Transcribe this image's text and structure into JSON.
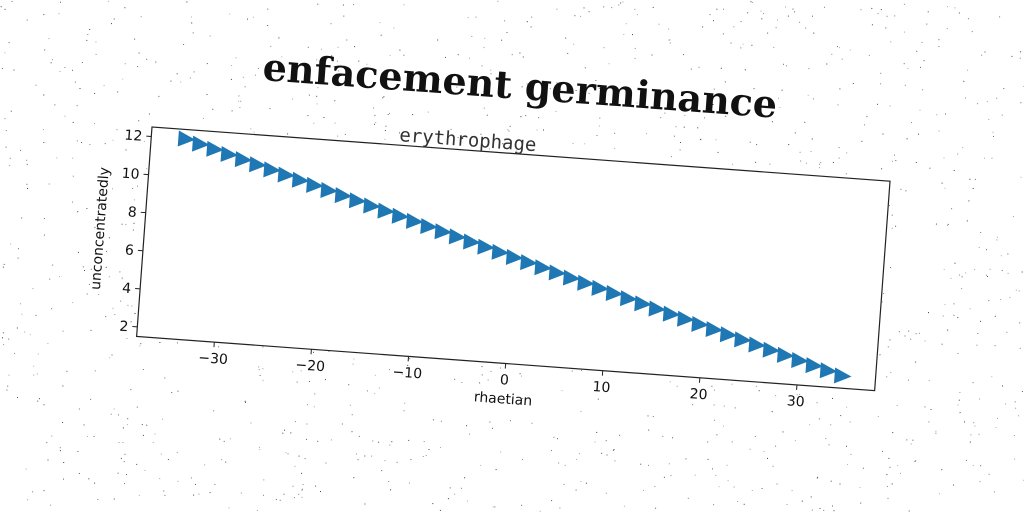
{
  "chart_data": {
    "type": "scatter",
    "suptitle": "enfacement germinance",
    "title": "erythrophage",
    "xlabel": "rhaetian",
    "ylabel": "unconcentratedly",
    "xlim": [
      -38,
      38
    ],
    "ylim": [
      1.5,
      12.5
    ],
    "xticks": [
      -30,
      -20,
      -10,
      0,
      10,
      20,
      30
    ],
    "yticks": [
      2,
      4,
      6,
      8,
      10,
      12
    ],
    "marker": "triangle-right",
    "color": "#1f77b4",
    "grid": false,
    "series": [
      {
        "x_start": -34.5,
        "x_step": 1.5,
        "points": 47,
        "y_start": 12.0,
        "slope": -0.1429
      }
    ]
  }
}
